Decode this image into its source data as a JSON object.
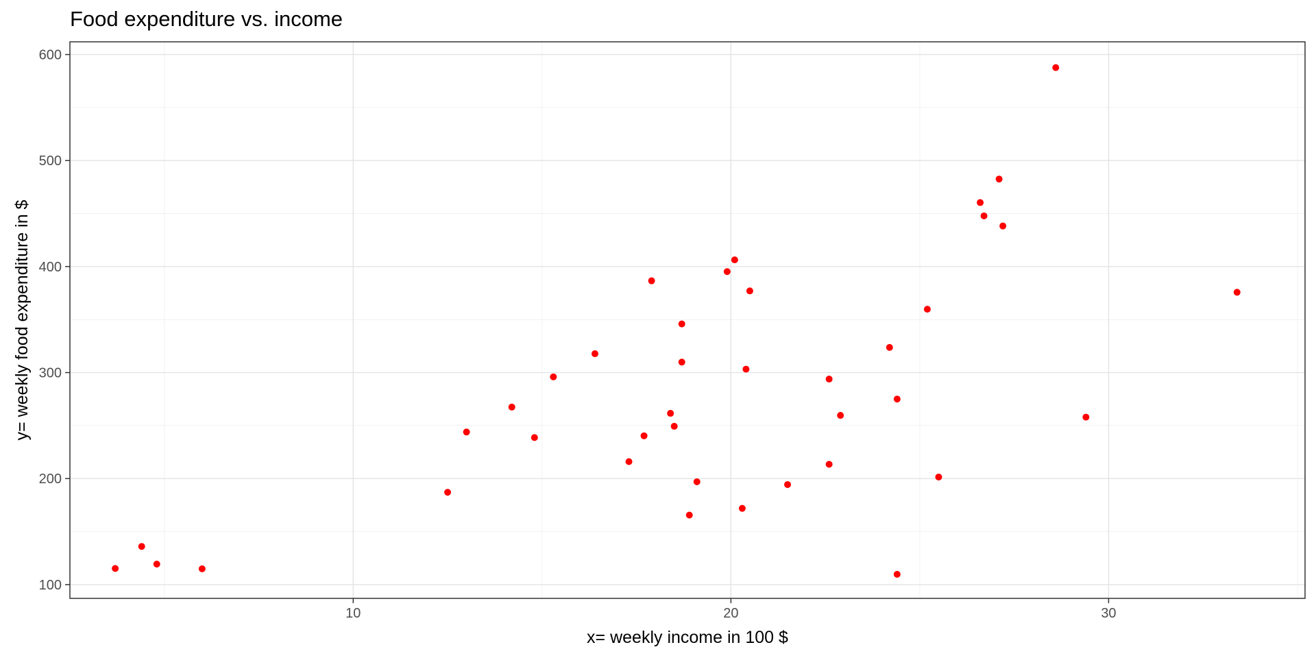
{
  "chart_data": {
    "type": "scatter",
    "title": "Food expenditure vs. income",
    "xlabel": "x= weekly income in 100  $",
    "ylabel": "y= weekly food expenditure in  $",
    "xlim": [
      2.5,
      35.2
    ],
    "ylim": [
      87,
      612
    ],
    "x_ticks": [
      10,
      20,
      30
    ],
    "y_ticks": [
      100,
      200,
      300,
      400,
      500,
      600
    ],
    "grid": true,
    "point_color": "#ff0000",
    "points": [
      {
        "x": 3.7,
        "y": 115.2
      },
      {
        "x": 4.4,
        "y": 135.98
      },
      {
        "x": 4.8,
        "y": 119.34
      },
      {
        "x": 6.0,
        "y": 114.88
      },
      {
        "x": 12.5,
        "y": 187.05
      },
      {
        "x": 13.0,
        "y": 243.92
      },
      {
        "x": 14.2,
        "y": 267.43
      },
      {
        "x": 14.8,
        "y": 238.71
      },
      {
        "x": 15.3,
        "y": 295.94
      },
      {
        "x": 16.4,
        "y": 317.78
      },
      {
        "x": 17.3,
        "y": 216.0
      },
      {
        "x": 17.7,
        "y": 240.35
      },
      {
        "x": 17.9,
        "y": 386.57
      },
      {
        "x": 18.4,
        "y": 261.53
      },
      {
        "x": 18.5,
        "y": 249.34
      },
      {
        "x": 18.7,
        "y": 309.87
      },
      {
        "x": 18.7,
        "y": 345.89
      },
      {
        "x": 18.9,
        "y": 165.54
      },
      {
        "x": 19.1,
        "y": 196.98
      },
      {
        "x": 19.9,
        "y": 395.26
      },
      {
        "x": 20.1,
        "y": 406.34
      },
      {
        "x": 20.3,
        "y": 171.92
      },
      {
        "x": 20.4,
        "y": 303.23
      },
      {
        "x": 20.5,
        "y": 377.04
      },
      {
        "x": 21.5,
        "y": 194.35
      },
      {
        "x": 22.6,
        "y": 213.48
      },
      {
        "x": 22.6,
        "y": 293.87
      },
      {
        "x": 22.9,
        "y": 259.61
      },
      {
        "x": 24.2,
        "y": 323.71
      },
      {
        "x": 24.4,
        "y": 275.02
      },
      {
        "x": 24.4,
        "y": 109.71
      },
      {
        "x": 25.2,
        "y": 359.77
      },
      {
        "x": 25.5,
        "y": 201.47
      },
      {
        "x": 26.6,
        "y": 460.36
      },
      {
        "x": 26.7,
        "y": 447.76
      },
      {
        "x": 27.1,
        "y": 482.55
      },
      {
        "x": 27.2,
        "y": 438.29
      },
      {
        "x": 28.6,
        "y": 587.66
      },
      {
        "x": 29.4,
        "y": 257.95
      },
      {
        "x": 33.4,
        "y": 375.73
      }
    ]
  }
}
